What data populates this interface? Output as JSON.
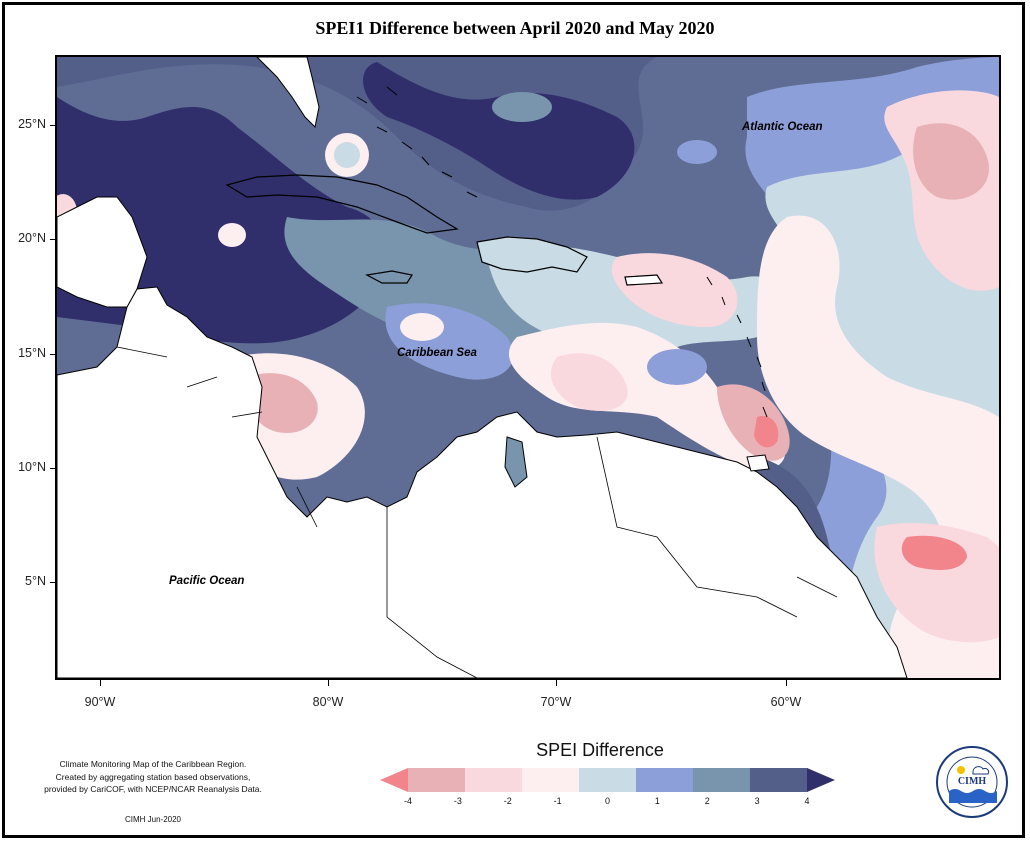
{
  "title": "SPEI1 Difference between April 2020 and May 2020",
  "labels": {
    "atlantic": "Atlantic Ocean",
    "caribbean": "Caribbean Sea",
    "pacific": "Pacific Ocean"
  },
  "axes": {
    "lat_ticks": [
      "25°N",
      "20°N",
      "15°N",
      "10°N",
      "5°N"
    ],
    "lon_ticks": [
      "90°W",
      "80°W",
      "70°W",
      "60°W"
    ]
  },
  "legend": {
    "title": "SPEI Difference",
    "ticks": [
      "-4",
      "-3",
      "-2",
      "-1",
      "0",
      "1",
      "2",
      "3",
      "4"
    ],
    "colors": [
      "#f2848b",
      "#e7b1b6",
      "#f9d8de",
      "#fdeef0",
      "#c9dbe4",
      "#8d9fd8",
      "#7895ad",
      "#535e89",
      "#302f6b"
    ]
  },
  "credit": {
    "line1": "Climate Monitoring Map of the Caribbean Region.",
    "line2": "Created by aggregating station based observations,",
    "line3": "provided by CariCOF, with NCEP/NCAR Reanalysis Data.",
    "date": "CIMH Jun-2020"
  },
  "logo": {
    "name": "CIMH"
  }
}
